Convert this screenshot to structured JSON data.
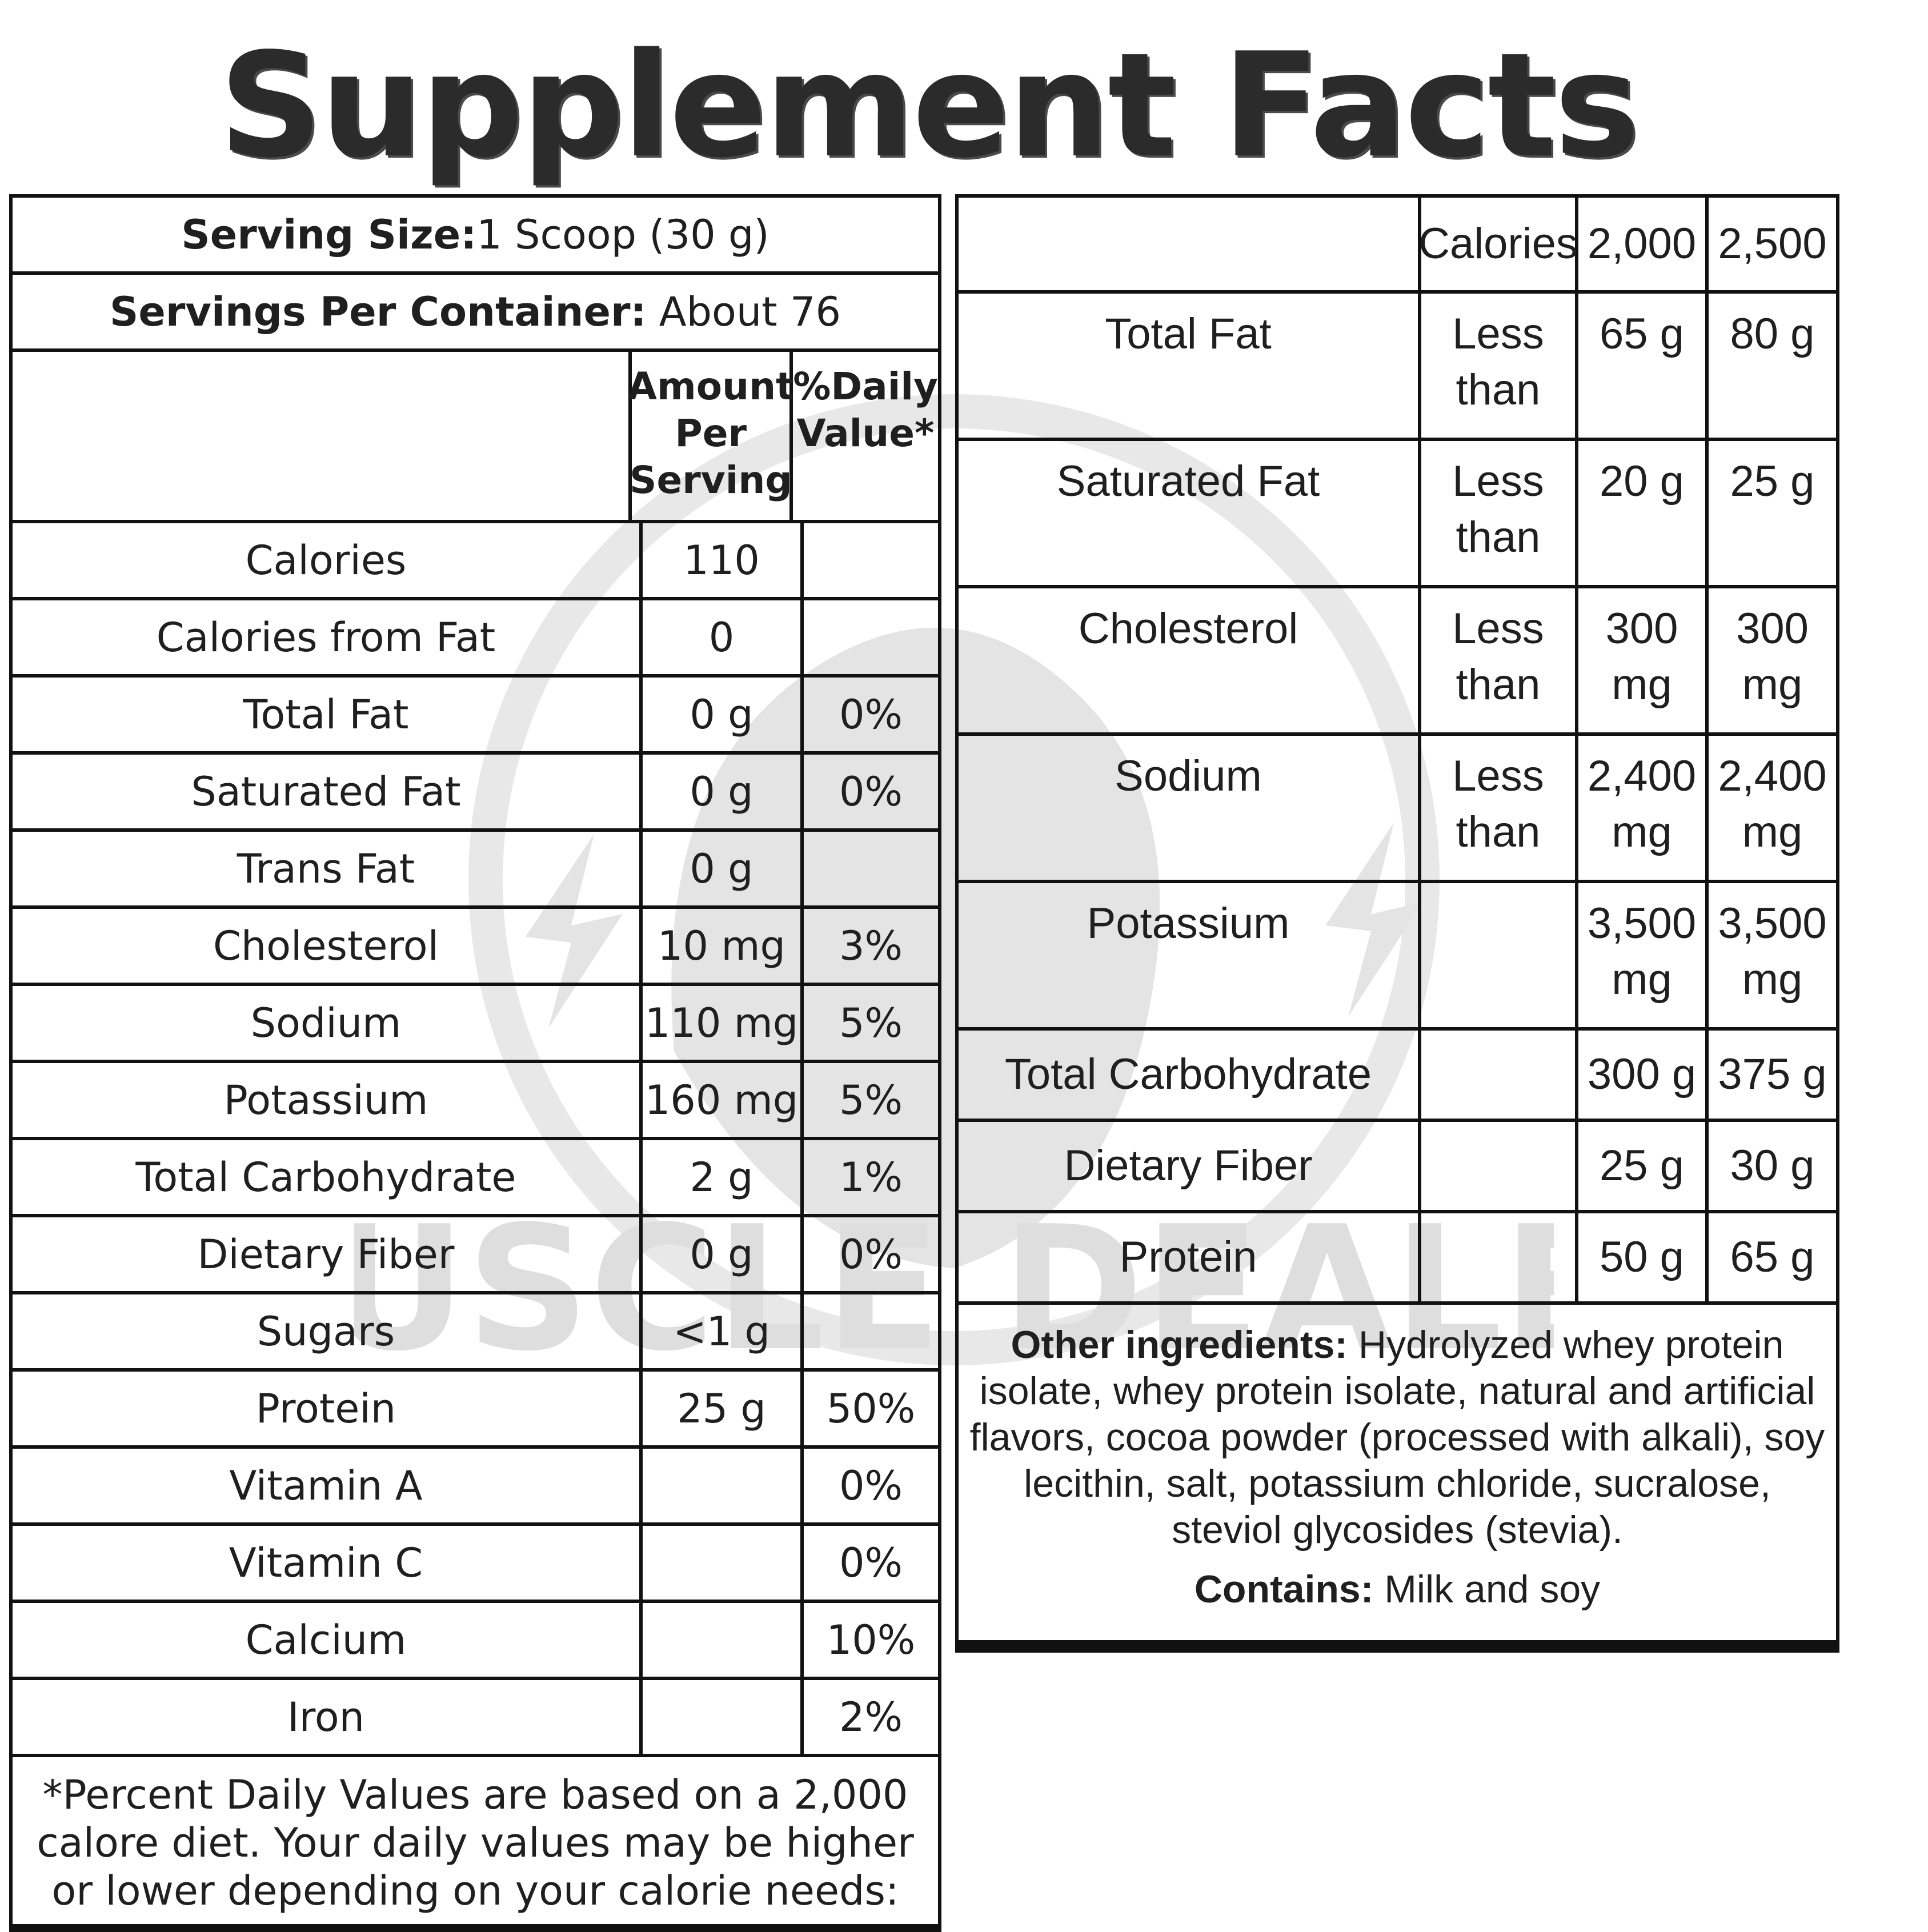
{
  "title": "Supplement Facts",
  "watermark_text": "MUSCLE DEALER",
  "serving": {
    "size_label": "Serving Size:",
    "size_value": "1 Scoop (30 g)",
    "per_container_label": "Servings Per Container:",
    "per_container_value": "About 76"
  },
  "left_table": {
    "header": {
      "amount": [
        "Amount",
        "Per",
        "Serving"
      ],
      "dv": [
        "%Daily",
        "Value*"
      ]
    },
    "rows": [
      {
        "name": "Calories",
        "amount": "110",
        "dv": ""
      },
      {
        "name": "Calories from Fat",
        "amount": "0",
        "dv": ""
      },
      {
        "name": "Total Fat",
        "amount": "0 g",
        "dv": "0%"
      },
      {
        "name": "Saturated Fat",
        "amount": "0 g",
        "dv": "0%"
      },
      {
        "name": "Trans Fat",
        "amount": "0 g",
        "dv": ""
      },
      {
        "name": "Cholesterol",
        "amount": "10 mg",
        "dv": "3%"
      },
      {
        "name": "Sodium",
        "amount": "110 mg",
        "dv": "5%"
      },
      {
        "name": "Potassium",
        "amount": "160 mg",
        "dv": "5%"
      },
      {
        "name": "Total Carbohydrate",
        "amount": "2 g",
        "dv": "1%"
      },
      {
        "name": "Dietary Fiber",
        "amount": "0 g",
        "dv": "0%"
      },
      {
        "name": "Sugars",
        "amount": "<1 g",
        "dv": ""
      },
      {
        "name": "Protein",
        "amount": "25 g",
        "dv": "50%"
      },
      {
        "name": "Vitamin A",
        "amount": "",
        "dv": "0%"
      },
      {
        "name": "Vitamin C",
        "amount": "",
        "dv": "0%"
      },
      {
        "name": "Calcium",
        "amount": "",
        "dv": "10%"
      },
      {
        "name": "Iron",
        "amount": "",
        "dv": "2%"
      }
    ],
    "footnote": "*Percent Daily Values are based on a 2,000 calore diet. Your daily values may be higher or lower depending on your calorie needs:"
  },
  "right_table": {
    "header": {
      "label": "Calories",
      "col1": "2,000",
      "col2": "2,500"
    },
    "rows": [
      {
        "name": "Total Fat",
        "qual": [
          "Less",
          "than"
        ],
        "v1": [
          "65 g"
        ],
        "v2": [
          "80 g"
        ]
      },
      {
        "name": "Saturated Fat",
        "qual": [
          "Less",
          "than"
        ],
        "v1": [
          "20 g"
        ],
        "v2": [
          "25 g"
        ]
      },
      {
        "name": "Cholesterol",
        "qual": [
          "Less",
          "than"
        ],
        "v1": [
          "300",
          "mg"
        ],
        "v2": [
          "300",
          "mg"
        ]
      },
      {
        "name": "Sodium",
        "qual": [
          "Less",
          "than"
        ],
        "v1": [
          "2,400",
          "mg"
        ],
        "v2": [
          "2,400",
          "mg"
        ]
      },
      {
        "name": "Potassium",
        "qual": [],
        "v1": [
          "3,500",
          "mg"
        ],
        "v2": [
          "3,500",
          "mg"
        ]
      },
      {
        "name": "Total Carbohydrate",
        "qual": [],
        "v1": [
          "300 g"
        ],
        "v2": [
          "375 g"
        ]
      },
      {
        "name": "Dietary Fiber",
        "qual": [],
        "v1": [
          "25 g"
        ],
        "v2": [
          "30 g"
        ]
      },
      {
        "name": "Protein",
        "qual": [],
        "v1": [
          "50 g"
        ],
        "v2": [
          "65 g"
        ]
      }
    ],
    "ingredients_label": "Other ingredients:",
    "ingredients_text": "Hydrolyzed whey protein isolate, whey protein isolate, natural and artificial flavors, cocoa powder (processed with alkali), soy lecithin, salt, potassium chloride, sucralose, steviol glycosides (stevia).",
    "contains_label": "Contains:",
    "contains_text": "Milk and soy"
  }
}
